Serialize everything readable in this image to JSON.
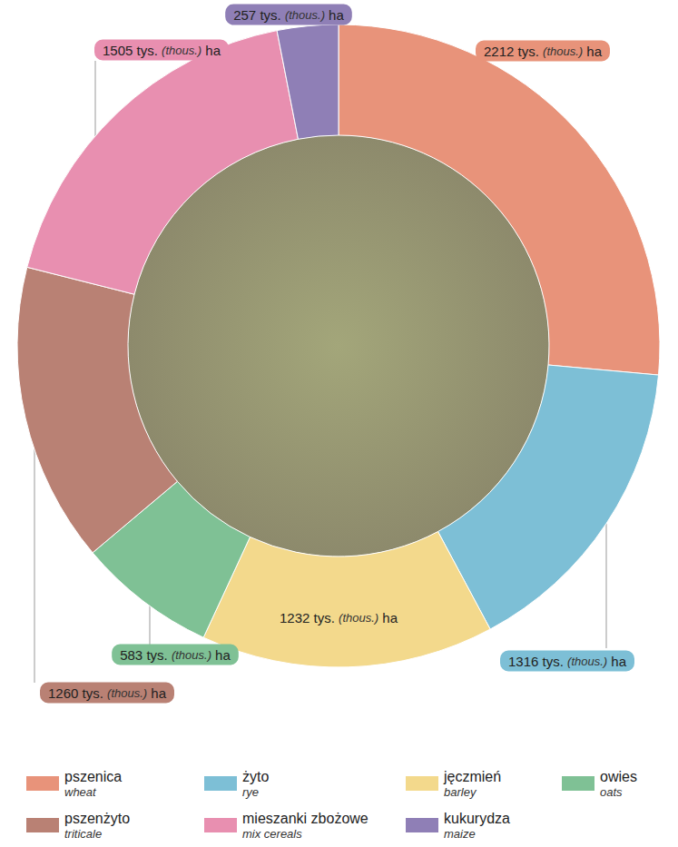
{
  "chart_data": {
    "type": "donut",
    "categories": [
      "pszenica",
      "żyto",
      "jęczmień",
      "owies",
      "pszenżyto",
      "mieszanki zbożowe",
      "kukurydza"
    ],
    "categories_en": [
      "wheat",
      "rye",
      "barley",
      "oats",
      "triticale",
      "mix cereals",
      "maize"
    ],
    "values": [
      2212,
      1316,
      1232,
      583,
      1260,
      1505,
      257
    ],
    "value_labels": [
      "2212 tys. (thous.) ha",
      "1316 tys. (thous.) ha",
      "1232 tys. (thous.) ha",
      "583 tys. (thous.) ha",
      "1260 tys. (thous.) ha",
      "1505 tys. (thous.) ha",
      "257 tys. (thous.) ha"
    ],
    "colors": [
      "#e8937a",
      "#7dbfd6",
      "#f3d98c",
      "#7fc195",
      "#b98174",
      "#e88fb0",
      "#8f7fb6"
    ],
    "data_labels": true,
    "legend": "bottom"
  }
}
